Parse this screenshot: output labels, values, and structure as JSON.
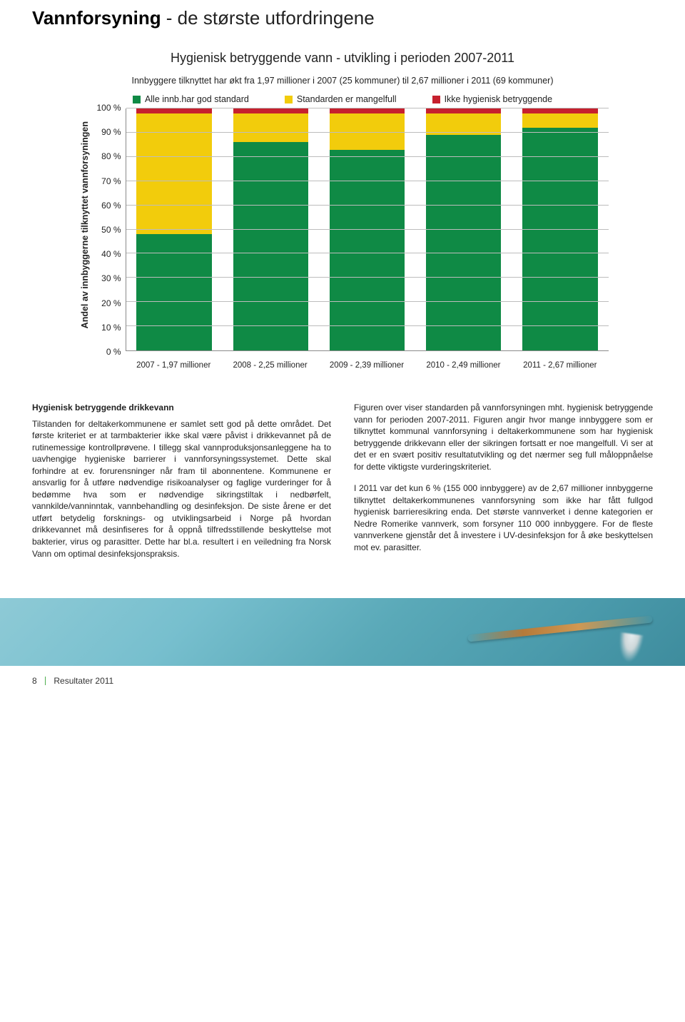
{
  "page_title_bold": "Vannforsyning",
  "page_title_rest": " - de største utfordringene",
  "chart": {
    "type": "stacked-bar",
    "title": "Hygienisk betryggende vann - utvikling i perioden 2007-2011",
    "subtitle": "Innbyggere tilknyttet har økt fra 1,97 millioner i 2007 (25 kommuner) til 2,67 millioner i 2011 (69 kommuner)",
    "y_axis_label": "Andel av innbyggerne tilknyttet vannforsyningen",
    "ylim": [
      0,
      100
    ],
    "ytick_step": 10,
    "y_ticks": [
      "100 %",
      "90 %",
      "80 %",
      "70 %",
      "60 %",
      "50 %",
      "40 %",
      "30 %",
      "20 %",
      "10 %",
      "0 %"
    ],
    "grid_color": "#bdbdbd",
    "axis_color": "#8a8a8a",
    "bar_width_pct": 78,
    "legend": [
      {
        "label": "Alle innb.har god standard",
        "color": "#0f8a45"
      },
      {
        "label": "Standarden er mangelfull",
        "color": "#f2cc0c"
      },
      {
        "label": "Ikke hygienisk betryggende",
        "color": "#c6202e"
      }
    ],
    "categories": [
      "2007 - 1,97 millioner",
      "2008 - 2,25 millioner",
      "2009 - 2,39 millioner",
      "2010 - 2,49 millioner",
      "2011 - 2,67 millioner"
    ],
    "series_stack": [
      {
        "key": "good",
        "color": "#0f8a45",
        "values": [
          48,
          86,
          83,
          89,
          92
        ]
      },
      {
        "key": "deficit",
        "color": "#f2cc0c",
        "values": [
          50,
          12,
          15,
          9,
          6
        ]
      },
      {
        "key": "unsafe",
        "color": "#c6202e",
        "values": [
          2,
          2,
          2,
          2,
          2
        ]
      }
    ]
  },
  "left_col": {
    "heading": "Hygienisk betryggende drikkevann",
    "para": "Tilstanden for deltakerkommunene er samlet sett god på dette området. Det første kriteriet er at tarmbakterier ikke skal være påvist i drikkevannet på de rutinemessige kontrollprøvene. I tillegg skal vannproduksjonsanleggene ha to uavhengige hygieniske barrierer i vannforsyningssystemet. Dette skal forhindre at ev. forurensninger når fram til abonnentene. Kommunene er ansvarlig for å utføre nødvendige risikoanalyser og faglige vurderinger for å bedømme hva som er nødvendige sikringstiltak i nedbørfelt, vannkilde/vanninntak, vannbehandling og desinfeksjon. De siste årene er det utført betydelig forsknings- og utviklingsarbeid i Norge på hvordan drikkevannet må desinfiseres for å oppnå tilfredsstillende beskyttelse mot bakterier, virus og parasitter. Dette har bl.a. resultert i en veiledning fra Norsk Vann om optimal desinfeksjonspraksis."
  },
  "right_col": {
    "para1": "Figuren over viser standarden på vannforsyningen mht. hygienisk betryggende vann for perioden 2007-2011. Figuren angir hvor mange innbyggere som er tilknyttet kommunal vannforsyning i deltakerkommunene som har hygienisk betryggende drikkevann eller der sikringen fortsatt er noe mangelfull. Vi ser at det er en svært positiv resultatutvikling og det nærmer seg full måloppnåelse for dette viktigste vurderingskriteriet.",
    "para2": "I 2011 var det kun 6 % (155 000 innbyggere) av de 2,67 millioner innbyggerne tilknyttet deltakerkommunenes vannforsyning som ikke har fått fullgod hygienisk barrieresikring enda. Det største vannverket i denne kategorien er Nedre Romerike vannverk, som forsyner 110 000 innbyggere. For de fleste vannverkene gjenstår det å investere i UV-desinfeksjon for å øke beskyttelsen mot ev. parasitter."
  },
  "footer": {
    "page_number": "8",
    "doc_label": "Resultater 2011"
  }
}
